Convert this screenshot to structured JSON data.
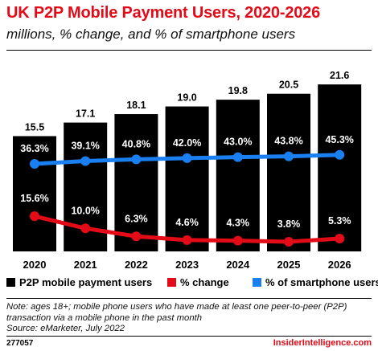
{
  "title": "UK P2P Mobile Payment Users, 2020-2026",
  "subtitle": "millions, % change, and % of smartphone users",
  "colors": {
    "users_bar": "#000000",
    "pct_change": "#e30b17",
    "pct_smartphone": "#1a7ff0",
    "title": "#e30b17"
  },
  "chart_data": {
    "type": "bar",
    "categories": [
      "2020",
      "2021",
      "2022",
      "2023",
      "2024",
      "2025",
      "2026"
    ],
    "series": [
      {
        "name": "P2P mobile payment users",
        "type": "bar",
        "values": [
          15.5,
          17.1,
          18.1,
          19.0,
          19.8,
          20.5,
          21.6
        ],
        "labels": [
          "15.5",
          "17.1",
          "18.1",
          "19.0",
          "19.8",
          "20.5",
          "21.6"
        ]
      },
      {
        "name": "% change",
        "type": "line",
        "values": [
          15.6,
          10.0,
          6.3,
          4.6,
          4.3,
          3.8,
          5.3
        ],
        "labels": [
          "15.6%",
          "10.0%",
          "6.3%",
          "4.6%",
          "4.3%",
          "3.8%",
          "5.3%"
        ]
      },
      {
        "name": "% of smartphone users",
        "type": "line",
        "values": [
          36.3,
          39.1,
          40.8,
          42.0,
          43.0,
          43.8,
          45.3
        ],
        "labels": [
          "36.3%",
          "39.1%",
          "40.8%",
          "42.0%",
          "43.0%",
          "43.8%",
          "45.3%"
        ]
      }
    ]
  },
  "legend": {
    "users": "P2P mobile payment users",
    "change": "% change",
    "smartphone": "% of smartphone users"
  },
  "note": "Note: ages 18+; mobile phone users who have made at least one peer-to-peer (P2P) transaction via a mobile phone in the past month",
  "source": "Source: eMarketer, July 2022",
  "footer": {
    "chart_id": "277057",
    "brand": "InsiderIntelligence.com"
  }
}
